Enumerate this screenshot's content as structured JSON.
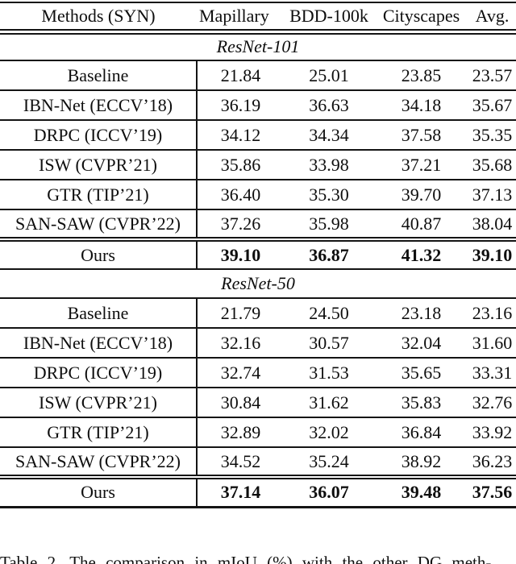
{
  "table": {
    "header": {
      "method_label": "Methods (SYN)",
      "columns": [
        "Mapillary",
        "BDD-100k",
        "Cityscapes",
        "Avg."
      ]
    },
    "sections": [
      {
        "title": "ResNet-101",
        "rows": [
          {
            "method": "Baseline",
            "values": [
              "21.84",
              "25.01",
              "23.85",
              "23.57"
            ]
          },
          {
            "method": "IBN-Net (ECCV’18)",
            "values": [
              "36.19",
              "36.63",
              "34.18",
              "35.67"
            ]
          },
          {
            "method": "DRPC (ICCV’19)",
            "values": [
              "34.12",
              "34.34",
              "37.58",
              "35.35"
            ]
          },
          {
            "method": "ISW (CVPR’21)",
            "values": [
              "35.86",
              "33.98",
              "37.21",
              "35.68"
            ]
          },
          {
            "method": "GTR (TIP’21)",
            "values": [
              "36.40",
              "35.30",
              "39.70",
              "37.13"
            ]
          },
          {
            "method": "SAN-SAW (CVPR’22)",
            "values": [
              "37.26",
              "35.98",
              "40.87",
              "38.04"
            ]
          },
          {
            "method": "Ours",
            "values": [
              "39.10",
              "36.87",
              "41.32",
              "39.10"
            ]
          }
        ]
      },
      {
        "title": "ResNet-50",
        "rows": [
          {
            "method": "Baseline",
            "values": [
              "21.79",
              "24.50",
              "23.18",
              "23.16"
            ]
          },
          {
            "method": "IBN-Net (ECCV’18)",
            "values": [
              "32.16",
              "30.57",
              "32.04",
              "31.60"
            ]
          },
          {
            "method": "DRPC (ICCV’19)",
            "values": [
              "32.74",
              "31.53",
              "35.65",
              "33.31"
            ]
          },
          {
            "method": "ISW (CVPR’21)",
            "values": [
              "30.84",
              "31.62",
              "35.83",
              "32.76"
            ]
          },
          {
            "method": "GTR (TIP’21)",
            "values": [
              "32.89",
              "32.02",
              "36.84",
              "33.92"
            ]
          },
          {
            "method": "SAN-SAW (CVPR’22)",
            "values": [
              "34.52",
              "35.24",
              "38.92",
              "36.23"
            ]
          },
          {
            "method": "Ours",
            "values": [
              "37.14",
              "36.07",
              "39.48",
              "37.56"
            ]
          }
        ]
      }
    ]
  },
  "caption": "Table 2. The comparison in mIoU (%) with the other DG meth-"
}
